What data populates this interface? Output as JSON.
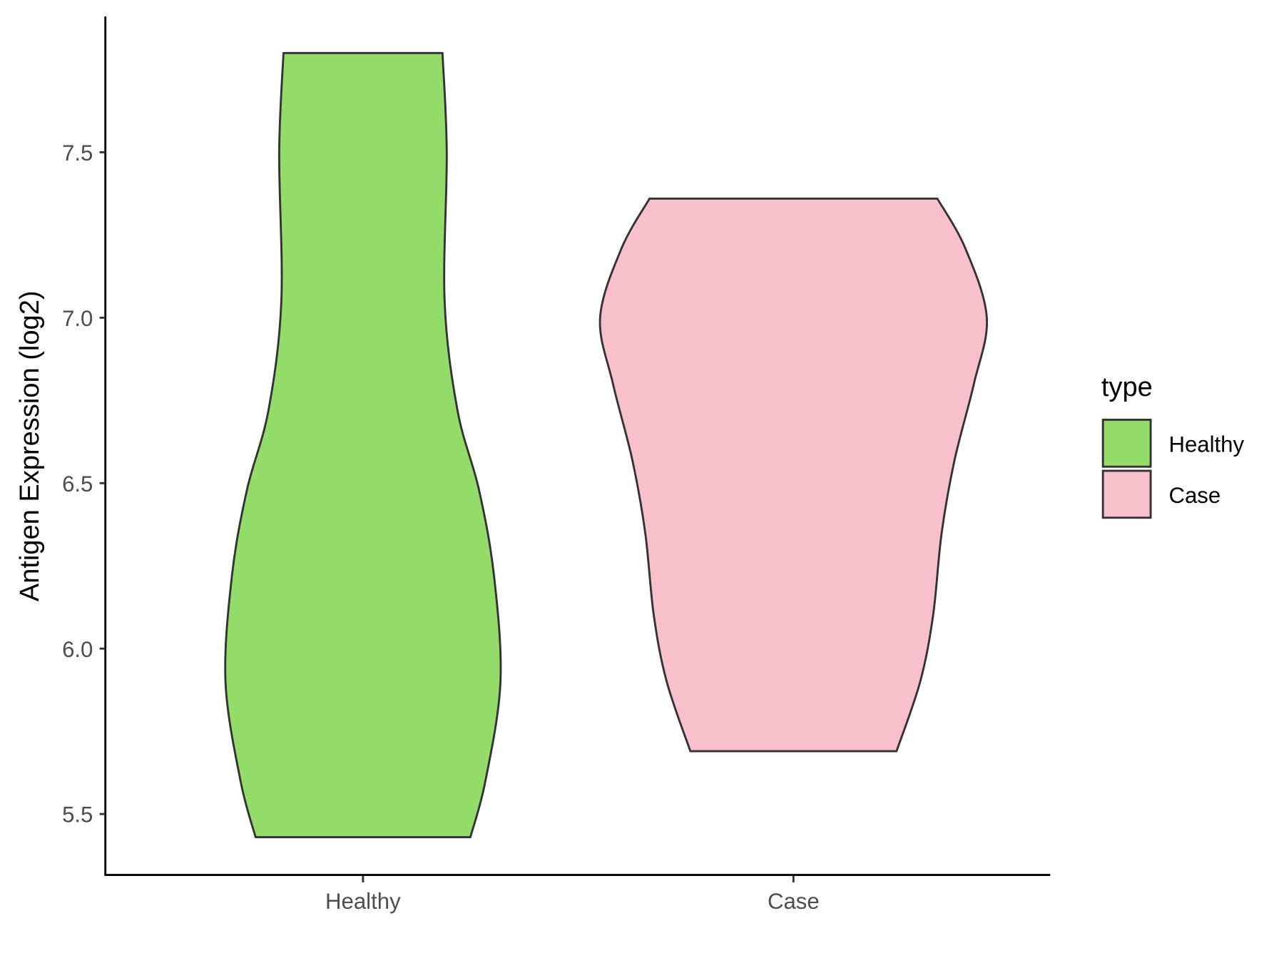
{
  "chart_data": {
    "type": "violin",
    "title": "",
    "xlabel": "",
    "ylabel": "Antigen Expression (log2)",
    "categories": [
      "Healthy",
      "Case"
    ],
    "y_ticks": [
      "5.5",
      "6.0",
      "6.5",
      "7.0",
      "7.5"
    ],
    "ylim": [
      5.33,
      7.9
    ],
    "grid": false,
    "legend": {
      "title": "type",
      "position": "right",
      "entries": [
        "Healthy",
        "Case"
      ]
    },
    "series": [
      {
        "name": "Healthy",
        "color": "#93DC6A",
        "min": 5.43,
        "max": 7.8,
        "profile": [
          [
            7.8,
            0.37
          ],
          [
            7.5,
            0.39
          ],
          [
            7.05,
            0.38
          ],
          [
            6.72,
            0.44
          ],
          [
            6.48,
            0.54
          ],
          [
            6.22,
            0.61
          ],
          [
            5.9,
            0.64
          ],
          [
            5.6,
            0.57
          ],
          [
            5.43,
            0.5
          ]
        ]
      },
      {
        "name": "Case",
        "color": "#F7C0CB",
        "min": 5.69,
        "max": 7.36,
        "profile": [
          [
            7.36,
            0.67
          ],
          [
            7.21,
            0.8
          ],
          [
            7.0,
            0.9
          ],
          [
            6.8,
            0.84
          ],
          [
            6.57,
            0.75
          ],
          [
            6.35,
            0.69
          ],
          [
            6.1,
            0.65
          ],
          [
            5.9,
            0.59
          ],
          [
            5.69,
            0.48
          ]
        ]
      }
    ]
  }
}
